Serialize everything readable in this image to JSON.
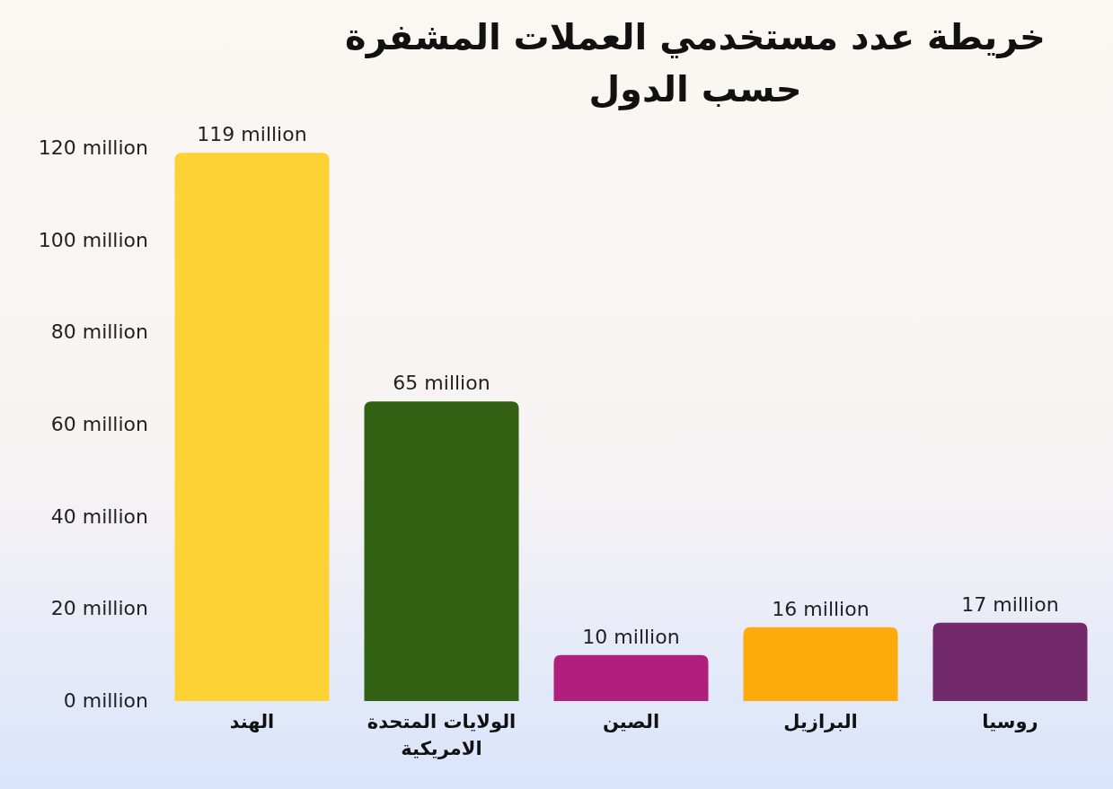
{
  "chart_data": {
    "type": "bar",
    "title": "خريطة عدد مستخدمي العملات المشفرة حسب الدول",
    "categories": [
      "الهند",
      "الولايات المتحدة الامريكية",
      "الصين",
      "البرازيل",
      "روسيا"
    ],
    "values": [
      119,
      65,
      10,
      16,
      17
    ],
    "colors": [
      "#fdd235",
      "#336114",
      "#b01f7b",
      "#fcaa0c",
      "#722a6b"
    ],
    "value_labels": [
      "119 million",
      "65 million",
      "10 million",
      "16 million",
      "17 million"
    ],
    "ylim": [
      0,
      120
    ],
    "yticks": [
      {
        "value": 0,
        "label": "0 million"
      },
      {
        "value": 20,
        "label": "20 million"
      },
      {
        "value": 40,
        "label": "40 million"
      },
      {
        "value": 60,
        "label": "60 million"
      },
      {
        "value": 80,
        "label": "80 million"
      },
      {
        "value": 100,
        "label": "100 million"
      },
      {
        "value": 120,
        "label": "120 million"
      }
    ],
    "grid": false
  }
}
